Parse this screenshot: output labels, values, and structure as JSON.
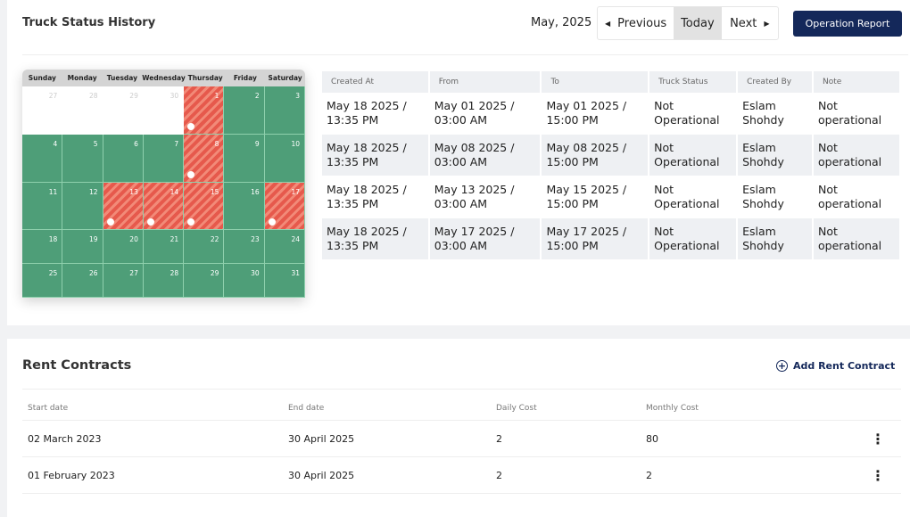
{
  "status_history": {
    "title": "Truck Status History",
    "month": "May, 2025",
    "nav": {
      "previous": "Previous",
      "today": "Today",
      "next": "Next"
    },
    "operation_report": "Operation Report",
    "calendar": {
      "weekdays": [
        "Sunday",
        "Monday",
        "Tuesday",
        "Wednesday",
        "Thursday",
        "Friday",
        "Saturday"
      ],
      "weeks": [
        [
          {
            "d": "27",
            "s": "out"
          },
          {
            "d": "28",
            "s": "out"
          },
          {
            "d": "29",
            "s": "out"
          },
          {
            "d": "30",
            "s": "out"
          },
          {
            "d": "1",
            "s": "red",
            "dot": true
          },
          {
            "d": "2",
            "s": "ok"
          },
          {
            "d": "3",
            "s": "ok"
          }
        ],
        [
          {
            "d": "4",
            "s": "ok"
          },
          {
            "d": "5",
            "s": "ok"
          },
          {
            "d": "6",
            "s": "ok"
          },
          {
            "d": "7",
            "s": "ok"
          },
          {
            "d": "8",
            "s": "red",
            "dot": true
          },
          {
            "d": "9",
            "s": "ok"
          },
          {
            "d": "10",
            "s": "ok"
          }
        ],
        [
          {
            "d": "11",
            "s": "ok"
          },
          {
            "d": "12",
            "s": "ok"
          },
          {
            "d": "13",
            "s": "red",
            "dot": true
          },
          {
            "d": "14",
            "s": "red",
            "dot": true
          },
          {
            "d": "15",
            "s": "red",
            "dot": true
          },
          {
            "d": "16",
            "s": "ok"
          },
          {
            "d": "17",
            "s": "red",
            "dot": true
          }
        ],
        [
          {
            "d": "18",
            "s": "ok"
          },
          {
            "d": "19",
            "s": "ok"
          },
          {
            "d": "20",
            "s": "ok"
          },
          {
            "d": "21",
            "s": "ok"
          },
          {
            "d": "22",
            "s": "ok"
          },
          {
            "d": "23",
            "s": "ok"
          },
          {
            "d": "24",
            "s": "ok"
          }
        ],
        [
          {
            "d": "25",
            "s": "ok"
          },
          {
            "d": "26",
            "s": "ok"
          },
          {
            "d": "27",
            "s": "ok"
          },
          {
            "d": "28",
            "s": "ok"
          },
          {
            "d": "29",
            "s": "ok"
          },
          {
            "d": "30",
            "s": "ok"
          },
          {
            "d": "31",
            "s": "ok"
          }
        ]
      ],
      "colors": {
        "operational": "#4e9e78",
        "not_operational": "#e6594c"
      }
    },
    "table": {
      "headers": [
        "Created At",
        "From",
        "To",
        "Truck Status",
        "Created By",
        "Note"
      ],
      "rows": [
        [
          "May 18 2025 / 13:35 PM",
          "May 01 2025 / 03:00 AM",
          "May 01 2025 / 15:00 PM",
          "Not Operational",
          "Eslam Shohdy",
          "Not operational"
        ],
        [
          "May 18 2025 / 13:35 PM",
          "May 08 2025 / 03:00 AM",
          "May 08 2025 / 15:00 PM",
          "Not Operational",
          "Eslam Shohdy",
          "Not operational"
        ],
        [
          "May 18 2025 / 13:35 PM",
          "May 13 2025 / 03:00 AM",
          "May 15 2025 / 15:00 PM",
          "Not Operational",
          "Eslam Shohdy",
          "Not operational"
        ],
        [
          "May 18 2025 / 13:35 PM",
          "May 17 2025 / 03:00 AM",
          "May 17 2025 / 15:00 PM",
          "Not Operational",
          "Eslam Shohdy",
          "Not operational"
        ]
      ]
    }
  },
  "rent_contracts": {
    "title": "Rent Contracts",
    "add_label": "Add Rent Contract",
    "headers": [
      "Start date",
      "End date",
      "Daily Cost",
      "Monthly Cost"
    ],
    "rows": [
      [
        "02 March 2023",
        "30 April 2025",
        "2",
        "80"
      ],
      [
        "01 February 2023",
        "30 April 2025",
        "2",
        "2"
      ]
    ]
  }
}
